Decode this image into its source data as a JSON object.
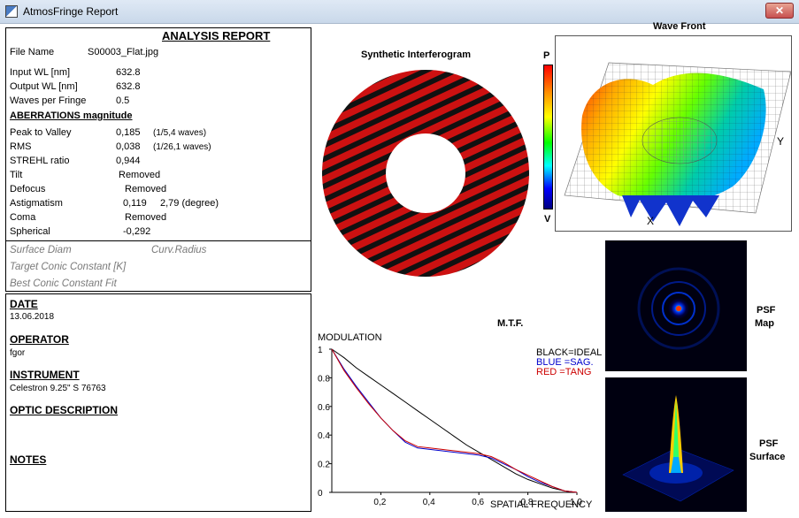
{
  "window": {
    "title": "AtmosFringe  Report",
    "close_label": "✕"
  },
  "report": {
    "title": "ANALYSIS  REPORT",
    "file_name_label": "File Name",
    "file_name_value": "S00003_Flat.jpg",
    "input_wl_label": "Input  WL [nm]",
    "input_wl_value": "632.8",
    "output_wl_label": "Output WL [nm]",
    "output_wl_value": "632.8",
    "waves_per_fringe_label": "Waves per Fringe",
    "waves_per_fringe_value": "0.5",
    "aberrations_heading": "ABERRATIONS magnitude",
    "peak_valley_label": "Peak to Valley",
    "peak_valley_value": "0,185",
    "peak_valley_waves": "(1/5,4 waves)",
    "rms_label": "RMS",
    "rms_value": "0,038",
    "rms_waves": "(1/26,1 waves)",
    "strehl_label": "STREHL ratio",
    "strehl_value": "0,944",
    "tilt_label": "Tilt",
    "tilt_value": "Removed",
    "defocus_label": "Defocus",
    "defocus_value": "Removed",
    "astigmatism_label": "Astigmatism",
    "astigmatism_value": "0,119",
    "astigmatism_angle": "2,79  (degree)",
    "coma_label": "Coma",
    "coma_value": "Removed",
    "spherical_label": "Spherical",
    "spherical_value": "-0,292",
    "surface_diam_label": "Surface Diam",
    "curv_radius_label": "Curv.Radius",
    "target_conic_label": "Target Conic Constant [K]",
    "best_conic_label": "Best Conic Constant Fit"
  },
  "info": {
    "date_heading": "DATE",
    "date_value": "13.06.2018",
    "operator_heading": "OPERATOR",
    "operator_value": "fgor",
    "instrument_heading": "INSTRUMENT",
    "instrument_value": "Celestron 9.25\" S 76763",
    "optic_heading": "OPTIC DESCRIPTION",
    "notes_heading": "NOTES"
  },
  "interferogram": {
    "title": "Synthetic Interferogram",
    "fringe_color": "#cc1111"
  },
  "colorbar": {
    "top_label": "P",
    "bottom_label": "V"
  },
  "wavefront": {
    "title": "Wave Front",
    "x_axis_label": "X",
    "y_axis_label": "Y"
  },
  "psf": {
    "map_label_line1": "PSF",
    "map_label_line2": "Map",
    "surface_label_line1": "PSF",
    "surface_label_line2": "Surface"
  },
  "mtf": {
    "title": "M.T.F.",
    "legend_black": "BLACK=IDEAL",
    "legend_blue": "BLUE  =SAG.",
    "legend_red": "RED   =TANG",
    "colors": {
      "ideal": "#000000",
      "sag": "#0000cc",
      "tang": "#cc0000"
    }
  },
  "chart_data": {
    "type": "line",
    "title": "",
    "xlabel": "SPATIAL FREQUENCY",
    "ylabel": "MODULATION",
    "xlim": [
      0,
      1.0
    ],
    "ylim": [
      0,
      1
    ],
    "x_tick_labels": [
      "0,2",
      "0,4",
      "0,6",
      "0,8",
      "1,0"
    ],
    "y_tick_labels": [
      "0",
      "0.2",
      "0.4",
      "0.6",
      "0.8",
      "1"
    ],
    "grid": false,
    "legend_placement": "top-right",
    "x": [
      0,
      0.05,
      0.1,
      0.15,
      0.2,
      0.25,
      0.3,
      0.35,
      0.4,
      0.45,
      0.5,
      0.55,
      0.6,
      0.65,
      0.7,
      0.75,
      0.8,
      0.85,
      0.9,
      0.95,
      1.0
    ],
    "series": [
      {
        "values": [
          1.0,
          0.94,
          0.87,
          0.81,
          0.75,
          0.69,
          0.63,
          0.57,
          0.51,
          0.45,
          0.39,
          0.33,
          0.28,
          0.23,
          0.18,
          0.13,
          0.09,
          0.06,
          0.03,
          0.01,
          0.0
        ]
      },
      {
        "values": [
          1.0,
          0.86,
          0.74,
          0.63,
          0.52,
          0.43,
          0.35,
          0.31,
          0.3,
          0.29,
          0.28,
          0.27,
          0.26,
          0.24,
          0.2,
          0.16,
          0.11,
          0.07,
          0.04,
          0.01,
          0.0
        ]
      },
      {
        "values": [
          1.0,
          0.85,
          0.73,
          0.62,
          0.52,
          0.43,
          0.36,
          0.32,
          0.31,
          0.3,
          0.29,
          0.28,
          0.27,
          0.25,
          0.21,
          0.16,
          0.12,
          0.08,
          0.04,
          0.01,
          0.0
        ]
      }
    ]
  }
}
